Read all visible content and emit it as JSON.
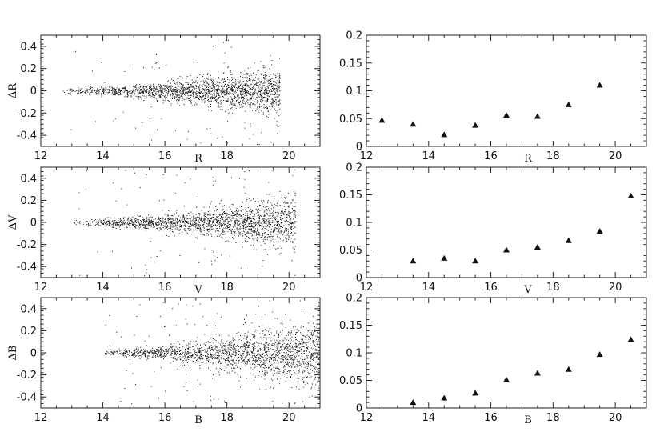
{
  "chart_data": [
    {
      "type": "scatter",
      "panel": "top-left",
      "xlabel": "R",
      "ylabel": "ΔR",
      "xlim": [
        12,
        21
      ],
      "ylim": [
        -0.5,
        0.5
      ],
      "xticks": [
        12,
        14,
        16,
        18,
        20
      ],
      "yticks": [
        -0.4,
        -0.2,
        0,
        0.2,
        0.4
      ],
      "xtick_labels": [
        "12",
        "14",
        "16",
        "18",
        "20"
      ],
      "ytick_labels": [
        "-0.4",
        "-0.2",
        "0",
        "0.2",
        "0.4"
      ],
      "points_cloud": {
        "x_start": 12.7,
        "x_end": 19.7,
        "n": 2000,
        "spread_start": 0.012,
        "spread_end": 0.11,
        "outlier_rate": 0.05,
        "seed": 11
      },
      "grid": false
    },
    {
      "type": "scatter",
      "panel": "top-right",
      "xlabel": "R",
      "ylabel": "",
      "xlim": [
        12,
        21
      ],
      "ylim": [
        0,
        0.2
      ],
      "xticks": [
        12,
        14,
        16,
        18,
        20
      ],
      "yticks": [
        0,
        0.05,
        0.1,
        0.15,
        0.2
      ],
      "xtick_labels": [
        "12",
        "14",
        "16",
        "18",
        "20"
      ],
      "ytick_labels": [
        "0",
        "0.05",
        "0.1",
        "0.15",
        "0.2"
      ],
      "x": [
        12.5,
        13.5,
        14.5,
        15.5,
        16.5,
        17.5,
        18.5,
        19.5
      ],
      "y": [
        0.047,
        0.04,
        0.021,
        0.038,
        0.056,
        0.054,
        0.075,
        0.11
      ],
      "marker": "triangle",
      "grid": false
    },
    {
      "type": "scatter",
      "panel": "middle-left",
      "xlabel": "V",
      "ylabel": "ΔV",
      "xlim": [
        12,
        21
      ],
      "ylim": [
        -0.5,
        0.5
      ],
      "xticks": [
        12,
        14,
        16,
        18,
        20
      ],
      "yticks": [
        -0.4,
        -0.2,
        0,
        0.2,
        0.4
      ],
      "xtick_labels": [
        "12",
        "14",
        "16",
        "18",
        "20"
      ],
      "ytick_labels": [
        "-0.4",
        "-0.2",
        "0",
        "0.2",
        "0.4"
      ],
      "points_cloud": {
        "x_start": 13.0,
        "x_end": 20.2,
        "n": 2000,
        "spread_start": 0.012,
        "spread_end": 0.12,
        "outlier_rate": 0.05,
        "seed": 23
      },
      "grid": false
    },
    {
      "type": "scatter",
      "panel": "middle-right",
      "xlabel": "V",
      "ylabel": "",
      "xlim": [
        12,
        21
      ],
      "ylim": [
        0,
        0.2
      ],
      "xticks": [
        12,
        14,
        16,
        18,
        20
      ],
      "yticks": [
        0,
        0.05,
        0.1,
        0.15,
        0.2
      ],
      "xtick_labels": [
        "12",
        "14",
        "16",
        "18",
        "20"
      ],
      "ytick_labels": [
        "0",
        "0.05",
        "0.1",
        "0.15",
        "0.2"
      ],
      "x": [
        13.5,
        14.5,
        15.5,
        16.5,
        17.5,
        18.5,
        19.5,
        20.5
      ],
      "y": [
        0.03,
        0.035,
        0.03,
        0.05,
        0.055,
        0.067,
        0.084,
        0.148
      ],
      "marker": "triangle",
      "grid": false
    },
    {
      "type": "scatter",
      "panel": "bottom-left",
      "xlabel": "B",
      "ylabel": "ΔB",
      "xlim": [
        12,
        21
      ],
      "ylim": [
        -0.5,
        0.5
      ],
      "xticks": [
        12,
        14,
        16,
        18,
        20
      ],
      "yticks": [
        -0.4,
        -0.2,
        0,
        0.2,
        0.4
      ],
      "xtick_labels": [
        "12",
        "14",
        "16",
        "18",
        "20"
      ],
      "ytick_labels": [
        "-0.4",
        "-0.2",
        "0",
        "0.2",
        "0.4"
      ],
      "points_cloud": {
        "x_start": 13.9,
        "x_end": 21.0,
        "n": 2000,
        "spread_start": 0.012,
        "spread_end": 0.16,
        "outlier_rate": 0.06,
        "seed": 37
      },
      "grid": false
    },
    {
      "type": "scatter",
      "panel": "bottom-right",
      "xlabel": "B",
      "ylabel": "",
      "xlim": [
        12,
        21
      ],
      "ylim": [
        0,
        0.2
      ],
      "xticks": [
        12,
        14,
        16,
        18,
        20
      ],
      "yticks": [
        0,
        0.05,
        0.1,
        0.15,
        0.2
      ],
      "xtick_labels": [
        "12",
        "14",
        "16",
        "18",
        "20"
      ],
      "ytick_labels": [
        "0",
        "0.05",
        "0.1",
        "0.15",
        "0.2"
      ],
      "x": [
        13.5,
        14.5,
        15.5,
        16.5,
        17.5,
        18.5,
        19.5,
        20.5
      ],
      "y": [
        0.01,
        0.018,
        0.027,
        0.051,
        0.063,
        0.07,
        0.097,
        0.124
      ],
      "marker": "triangle",
      "grid": false
    }
  ],
  "colors": {
    "ink": "#111111",
    "frame": "#222222",
    "background": "#ffffff"
  }
}
